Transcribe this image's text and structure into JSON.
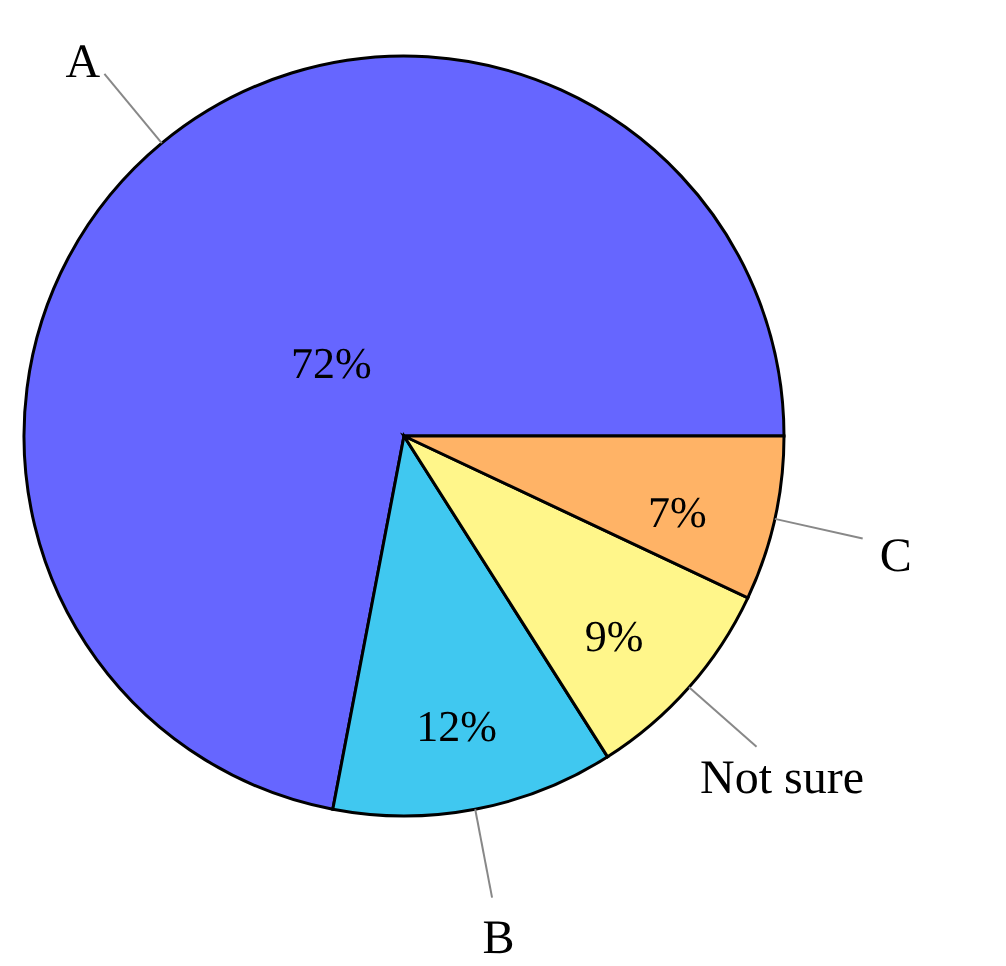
{
  "chart_data": {
    "type": "pie",
    "categories": [
      "A",
      "B",
      "Not sure",
      "C"
    ],
    "values": [
      72,
      12,
      9,
      7
    ],
    "colors": [
      "#6666ff",
      "#40c8f0",
      "#fff68a",
      "#ffb366"
    ],
    "value_labels": [
      "72%",
      "12%",
      "9%",
      "7%"
    ]
  }
}
